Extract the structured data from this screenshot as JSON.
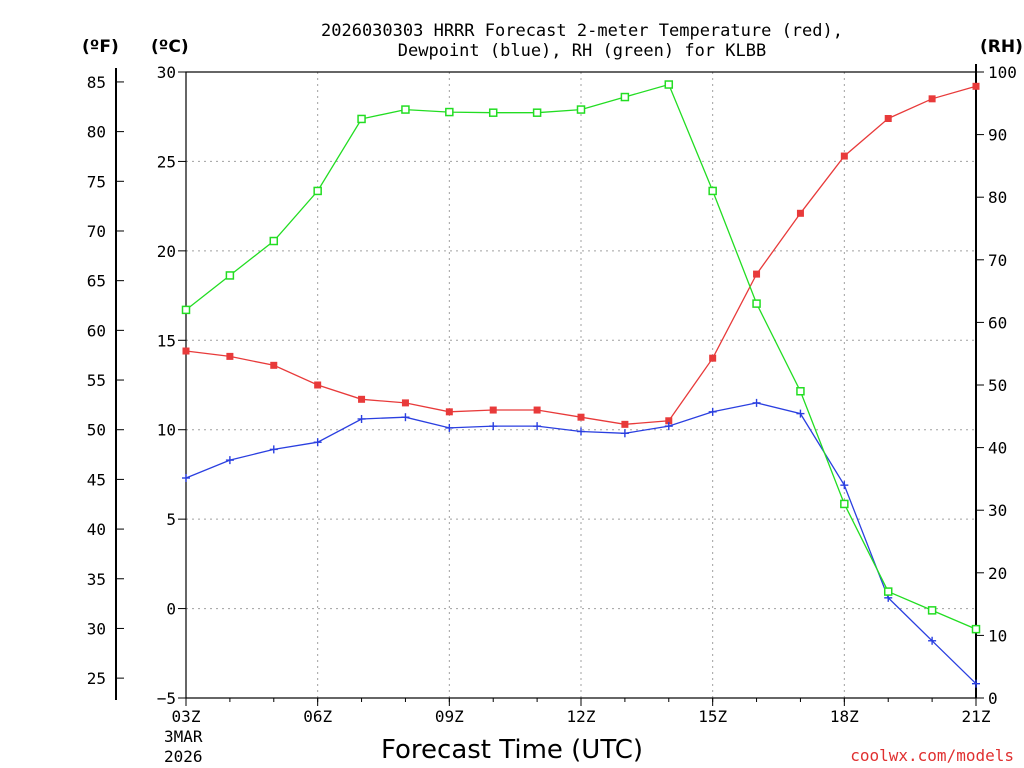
{
  "chart_data": {
    "type": "line",
    "title": [
      "2026030303 HRRR Forecast 2-meter Temperature (red),",
      "Dewpoint (blue), RH (green) for KLBB"
    ],
    "xlabel": "Forecast Time (UTC)",
    "x_date": [
      "3MAR",
      "2026"
    ],
    "credit": "coolwx.com/models",
    "units": {
      "f": "(ºF)",
      "c": "(ºC)",
      "rh": "(RH)"
    },
    "x_hours": [
      3,
      4,
      5,
      6,
      7,
      8,
      9,
      10,
      11,
      12,
      13,
      14,
      15,
      16,
      17,
      18,
      19,
      20,
      21
    ],
    "x_ticks": [
      {
        "hour": 3,
        "label": "03Z"
      },
      {
        "hour": 6,
        "label": "06Z"
      },
      {
        "hour": 9,
        "label": "09Z"
      },
      {
        "hour": 12,
        "label": "12Z"
      },
      {
        "hour": 15,
        "label": "15Z"
      },
      {
        "hour": 18,
        "label": "18Z"
      },
      {
        "hour": 21,
        "label": "21Z"
      }
    ],
    "ylim_c": [
      -5,
      30
    ],
    "c_ticks": [
      -5,
      0,
      5,
      10,
      15,
      20,
      25,
      30
    ],
    "f_ticks": [
      25,
      30,
      35,
      40,
      45,
      50,
      55,
      60,
      65,
      70,
      75,
      80,
      85
    ],
    "ylim_rh": [
      0,
      100
    ],
    "rh_ticks": [
      0,
      10,
      20,
      30,
      40,
      50,
      60,
      70,
      80,
      90,
      100
    ],
    "grid": true,
    "series": [
      {
        "name": "Temperature",
        "axis": "c",
        "color": "#e83a3a",
        "marker": "filled-square",
        "values": [
          14.4,
          14.1,
          13.6,
          12.5,
          11.7,
          11.5,
          11.0,
          11.1,
          11.1,
          10.7,
          10.3,
          10.5,
          14.0,
          18.7,
          22.1,
          25.3,
          27.4,
          28.5,
          29.2
        ]
      },
      {
        "name": "Dewpoint",
        "axis": "c",
        "color": "#2a3fe0",
        "marker": "plus",
        "values": [
          7.3,
          8.3,
          8.9,
          9.3,
          10.6,
          10.7,
          10.1,
          10.2,
          10.2,
          9.9,
          9.8,
          10.2,
          11.0,
          11.5,
          10.9,
          6.9,
          0.6,
          -1.8,
          -4.2
        ]
      },
      {
        "name": "RH",
        "axis": "rh",
        "color": "#22dd22",
        "marker": "open-square",
        "values": [
          62,
          67.5,
          73,
          81,
          92.5,
          94,
          93.6,
          93.5,
          93.5,
          94,
          96,
          98,
          81,
          63,
          49,
          31,
          17,
          14,
          11
        ]
      }
    ]
  }
}
